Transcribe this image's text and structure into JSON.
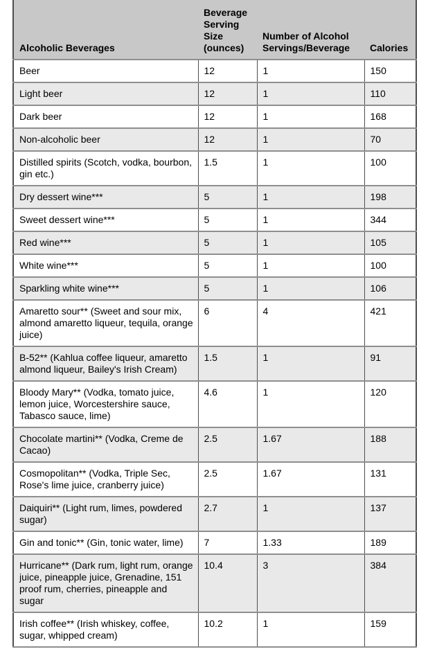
{
  "table": {
    "columns": [
      "Alcoholic Beverages",
      "Beverage Serving Size (ounces)",
      "Number of Alcohol Servings/Beverage",
      "Calories"
    ],
    "rows": [
      [
        "Beer",
        "12",
        "1",
        "150"
      ],
      [
        "Light beer",
        "12",
        "1",
        "110"
      ],
      [
        "Dark beer",
        "12",
        "1",
        "168"
      ],
      [
        "Non-alcoholic beer",
        "12",
        "1",
        "70"
      ],
      [
        "Distilled spirits (Scotch, vodka, bourbon, gin etc.)",
        "1.5",
        "1",
        "100"
      ],
      [
        "Dry dessert wine***",
        "5",
        "1",
        "198"
      ],
      [
        "Sweet dessert wine***",
        "5",
        "1",
        "344"
      ],
      [
        "Red wine***",
        "5",
        "1",
        "105"
      ],
      [
        "White wine***",
        "5",
        "1",
        "100"
      ],
      [
        "Sparkling white wine***",
        "5",
        "1",
        "106"
      ],
      [
        "Amaretto sour** (Sweet and sour mix, almond amaretto liqueur, tequila, orange juice)",
        "6",
        "4",
        "421"
      ],
      [
        "B-52** (Kahlua coffee liqueur, amaretto almond liqueur, Bailey's Irish Cream)",
        "1.5",
        "1",
        "91"
      ],
      [
        "Bloody Mary** (Vodka, tomato juice, lemon juice, Worcestershire sauce, Tabasco sauce, lime)",
        "4.6",
        "1",
        "120"
      ],
      [
        "Chocolate martini** (Vodka, Creme de Cacao)",
        "2.5",
        "1.67",
        "188"
      ],
      [
        "Cosmopolitan** (Vodka, Triple Sec, Rose's lime juice, cranberry juice)",
        "2.5",
        "1.67",
        "131"
      ],
      [
        "Daiquiri** (Light rum, limes, powdered sugar)",
        "2.7",
        "1",
        "137"
      ],
      [
        "Gin and tonic** (Gin, tonic water, lime)",
        "7",
        "1.33",
        "189"
      ],
      [
        "Hurricane** (Dark rum, light rum, orange juice, pineapple juice, Grenadine, 151 proof rum, cherries, pineapple and sugar",
        "10.4",
        "3",
        "384"
      ],
      [
        "Irish coffee** (Irish whiskey, coffee, sugar, whipped cream)",
        "10.2",
        "1",
        "159"
      ]
    ]
  },
  "colors": {
    "header_bg": "#c8c8c8",
    "alt_row_bg": "#e9e9e9",
    "border_dark": "#4d4d4d",
    "border_light": "#8e8e8e",
    "text_color": "#000000"
  }
}
